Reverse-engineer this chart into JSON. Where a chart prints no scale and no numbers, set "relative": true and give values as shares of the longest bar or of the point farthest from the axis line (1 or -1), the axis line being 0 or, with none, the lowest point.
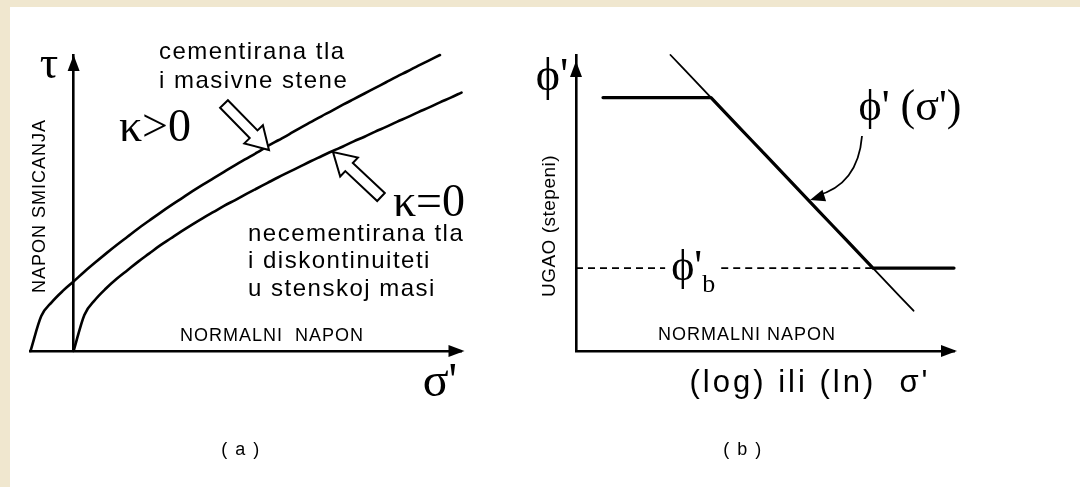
{
  "chart_data": [
    {
      "type": "line",
      "title": "( a )",
      "xlabel": "NORMALNI  NAPON",
      "ylabel": "NAPON SMICANJA",
      "annotations": [
        "τ",
        "σ'",
        "cementirana tla\ni masivne stene",
        "necementirana tla\ni diskontinuiteti\nu stenskoj masi"
      ],
      "relative": true,
      "categories": [
        null,
        null,
        null,
        null,
        null,
        null,
        null,
        null,
        null,
        null,
        null,
        null,
        null,
        null,
        null,
        null,
        null,
        null,
        null,
        null,
        null,
        null,
        null,
        null,
        null,
        null,
        null,
        null,
        null,
        null,
        null,
        null,
        null,
        null,
        null,
        null,
        null,
        null,
        null,
        null,
        null
      ],
      "series": [
        {
          "name": "κ>0",
          "color": "#000000",
          "values": [
            0,
            0.118,
            0.166,
            0.203,
            0.235,
            0.268,
            0.299,
            0.329,
            0.358,
            0.386,
            0.414,
            0.44,
            0.466,
            0.491,
            0.515,
            0.539,
            0.562,
            0.584,
            0.606,
            0.628,
            0.649,
            0.67,
            0.692,
            0.712,
            0.732,
            0.753,
            0.773,
            0.793,
            0.812,
            0.832,
            0.851,
            0.87,
            0.889,
            0.908,
            0.927,
            0.945,
            0.964,
            0.982,
            1.0,
            null,
            null
          ]
        },
        {
          "name": "κ=0",
          "color": "#000000",
          "values": [
            null,
            null,
            null,
            null,
            0,
            0.122,
            0.173,
            0.211,
            0.244,
            0.273,
            0.302,
            0.329,
            0.356,
            0.38,
            0.404,
            0.427,
            0.449,
            0.47,
            0.491,
            0.51,
            0.53,
            0.549,
            0.568,
            0.587,
            0.605,
            0.623,
            0.641,
            0.658,
            0.675,
            0.691,
            0.708,
            0.724,
            0.741,
            0.757,
            0.774,
            0.79,
            0.807,
            0.823,
            0.84,
            0.856,
            0.873
          ]
        }
      ]
    },
    {
      "type": "line",
      "title": "( b )",
      "xlabel": "NORMALNI NAPON",
      "ylabel": "UGAO (stepeni)",
      "annotations": [
        "ϕ'",
        "(log) ili (ln)  σ'"
      ],
      "relative": true,
      "categories": [
        null,
        null,
        null,
        null,
        null,
        null,
        null,
        null,
        null,
        null,
        null,
        null,
        null,
        null,
        null,
        null,
        null,
        null,
        null,
        null,
        null,
        null,
        null,
        null,
        null,
        null,
        null,
        null,
        null
      ],
      "series": [
        {
          "color": "#000000",
          "values": [
            null,
            null,
            null,
            null,
            null,
            null,
            null,
            1.0,
            0.952,
            0.904,
            0.856,
            0.808,
            0.76,
            0.712,
            0.664,
            0.616,
            0.568,
            0.52,
            0.472,
            0.424,
            0.376,
            0.328,
            0.28,
            0.232,
            0.184,
            0.136,
            null,
            null,
            null
          ]
        },
        {
          "name": "ϕ' (σ')",
          "color": "#000000",
          "values": [
            null,
            null,
            0.856,
            0.856,
            0.856,
            0.856,
            0.856,
            0.856,
            0.856,
            0.856,
            0.856,
            0.808,
            0.76,
            0.712,
            0.664,
            0.616,
            0.568,
            0.52,
            0.472,
            0.424,
            0.376,
            0.328,
            0.28,
            0.28,
            0.28,
            0.28,
            0.28,
            0.28,
            0.28
          ]
        }
      ],
      "ref_lines": [
        {
          "axis": "y",
          "value": 0.28,
          "label": "ϕ'$_{b}$",
          "line_style": "dashed",
          "color": "#000000"
        }
      ]
    }
  ]
}
